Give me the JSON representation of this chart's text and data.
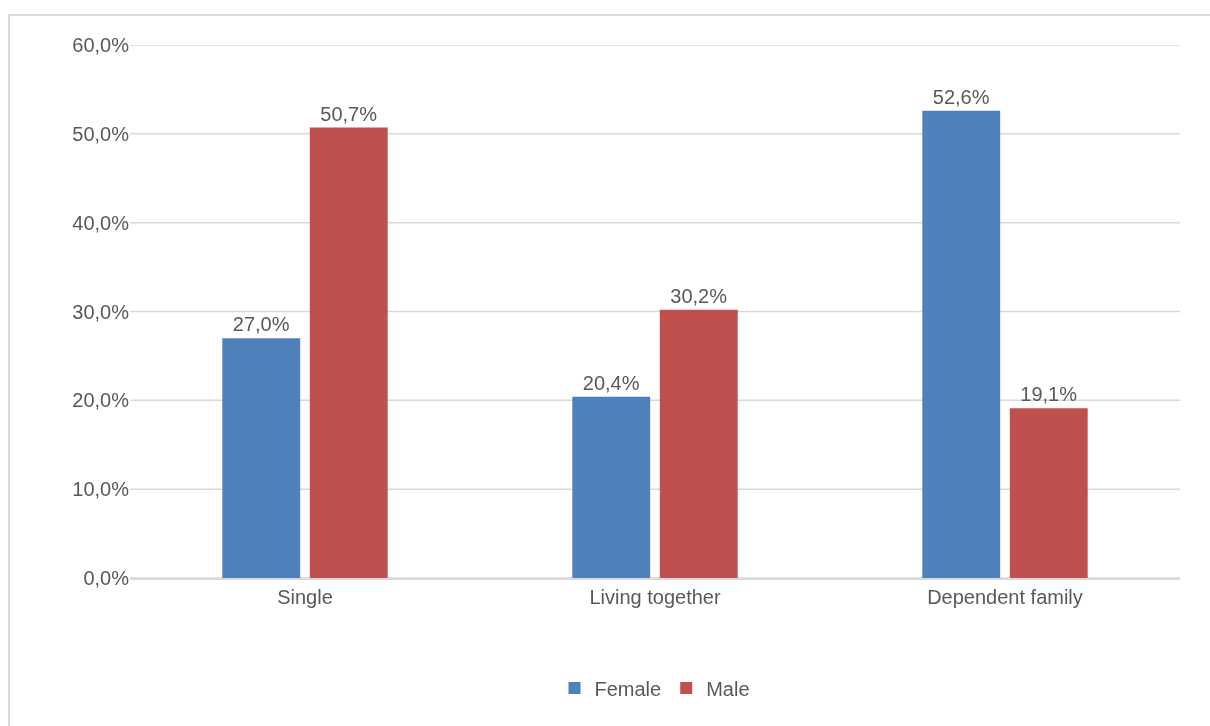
{
  "chart_data": {
    "type": "bar",
    "categories": [
      "Single",
      "Living together",
      "Dependent family"
    ],
    "series": [
      {
        "name": "Female",
        "color": "#4f81bd",
        "values": [
          27.0,
          20.4,
          52.6
        ],
        "value_labels": [
          "27,0%",
          "20,4%",
          "52,6%"
        ]
      },
      {
        "name": "Male",
        "color": "#c0504d",
        "values": [
          50.7,
          30.2,
          19.1
        ],
        "value_labels": [
          "50,7%",
          "30,2%",
          "19,1%"
        ]
      }
    ],
    "ylim": [
      0,
      60
    ],
    "yticks": [
      {
        "value": 0,
        "label": "0,0%"
      },
      {
        "value": 10,
        "label": "10,0%"
      },
      {
        "value": 20,
        "label": "20,0%"
      },
      {
        "value": 30,
        "label": "30,0%"
      },
      {
        "value": 40,
        "label": "40,0%"
      },
      {
        "value": 50,
        "label": "50,0%"
      },
      {
        "value": 60,
        "label": "60,0%"
      }
    ],
    "grid": "y",
    "legend": "bottom"
  }
}
